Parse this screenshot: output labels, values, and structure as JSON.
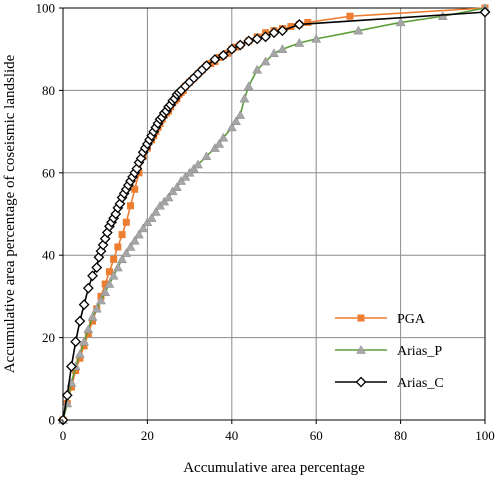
{
  "chart_data": {
    "type": "line",
    "title": "",
    "xlabel": "Accumulative area percentage",
    "ylabel": "Accumulative area percentage of coseismic landslide",
    "xlim": [
      0,
      100
    ],
    "ylim": [
      0,
      100
    ],
    "xticks": [
      "0",
      "20",
      "40",
      "60",
      "80",
      "100"
    ],
    "yticks": [
      "0",
      "20",
      "40",
      "60",
      "80",
      "100"
    ],
    "grid": true,
    "legend_position": "bottom-right",
    "series": [
      {
        "name": "PGA",
        "color": "#ED7D31",
        "marker": "square",
        "x": [
          0,
          1,
          2,
          3,
          4,
          5,
          6,
          7,
          8,
          9,
          10,
          11,
          12,
          13,
          14,
          15,
          16,
          17,
          18,
          19,
          20,
          21,
          21.5,
          22,
          22.5,
          23,
          23.5,
          24,
          24.5,
          25,
          25.5,
          26,
          26.5,
          27,
          27.5,
          28,
          28.5,
          29,
          30,
          31,
          32,
          33,
          34,
          35,
          36,
          37,
          38,
          39,
          40,
          41,
          42,
          44,
          46,
          48,
          50,
          52,
          54,
          56,
          58,
          68,
          100
        ],
        "y": [
          0,
          4,
          8,
          12,
          15,
          18,
          21,
          24,
          27,
          30,
          33,
          36,
          39,
          42,
          45,
          48,
          52,
          56,
          60,
          64,
          66,
          68,
          69,
          70,
          71,
          72,
          73,
          74,
          74.5,
          75,
          76,
          77,
          77.5,
          78,
          79,
          79.5,
          80,
          81,
          82,
          83,
          84,
          85,
          86,
          86.5,
          87,
          88,
          88.5,
          89,
          90,
          90.5,
          91,
          92,
          93,
          94,
          94.5,
          95,
          95.5,
          96,
          96.5,
          98,
          100
        ]
      },
      {
        "name": "Arias_P",
        "color": "#5B9E3A",
        "marker": "triangle",
        "x": [
          0,
          1,
          2,
          3,
          4,
          5,
          6,
          7,
          8,
          9,
          10,
          11,
          12,
          13,
          14,
          15,
          16,
          17,
          18,
          19,
          20,
          21,
          22,
          23,
          24,
          25,
          26,
          27,
          28,
          29,
          30,
          31,
          32,
          34,
          36,
          37,
          38,
          40,
          41,
          42,
          43,
          44,
          46,
          48,
          50,
          52,
          56,
          60,
          70,
          80,
          90,
          100
        ],
        "y": [
          0,
          4,
          9,
          13,
          16,
          19,
          22,
          25,
          27,
          29,
          31,
          33,
          35,
          37,
          39,
          40.5,
          42,
          43.5,
          45,
          46.5,
          48,
          49,
          50.5,
          52,
          53,
          54,
          55.5,
          56.5,
          58,
          59,
          60,
          61,
          62,
          64,
          66,
          67,
          68.5,
          71,
          72.5,
          74,
          78,
          81,
          85,
          87,
          89,
          90,
          91.5,
          92.5,
          94.5,
          96.5,
          98,
          100
        ]
      },
      {
        "name": "Arias_C",
        "color": "#000000",
        "marker": "diamond",
        "x": [
          0,
          1,
          2,
          3,
          4,
          5,
          6,
          7,
          8,
          8.5,
          9,
          9.5,
          10,
          10.5,
          11,
          11.5,
          12,
          12.5,
          13,
          13.5,
          14,
          14.5,
          15,
          15.5,
          16,
          16.5,
          17,
          17.5,
          18,
          18.5,
          19,
          19.5,
          20,
          20.5,
          21,
          21.5,
          22,
          22.5,
          23,
          23.5,
          24,
          24.5,
          25,
          25.5,
          26,
          26.5,
          27,
          27.5,
          28,
          29,
          30,
          31,
          32,
          33,
          34,
          36,
          38,
          40,
          42,
          44,
          46,
          48,
          50,
          52,
          56,
          100
        ],
        "y": [
          0,
          6,
          13,
          19,
          24,
          28,
          32,
          35,
          37,
          39.5,
          41,
          42.5,
          44,
          45.5,
          47,
          48,
          49,
          50,
          51.5,
          52.5,
          54,
          55,
          56,
          57,
          58,
          59,
          60,
          61,
          62.5,
          63.5,
          65,
          66,
          67,
          68,
          69,
          70,
          71,
          72,
          73,
          73.5,
          74.5,
          75,
          76,
          76.5,
          77.5,
          78,
          79,
          79.5,
          80,
          81,
          82,
          83,
          84,
          85,
          86,
          87.5,
          88.5,
          90,
          91,
          92,
          92.5,
          93,
          94,
          94.5,
          96,
          99
        ]
      }
    ]
  }
}
